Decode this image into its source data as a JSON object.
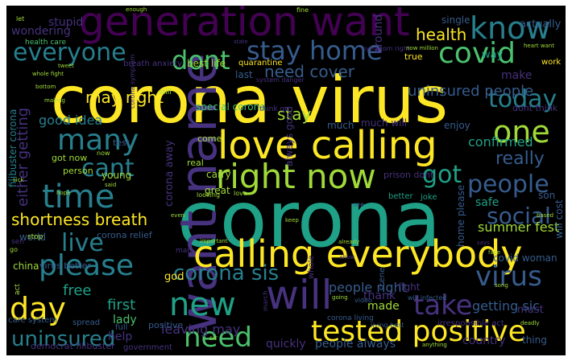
{
  "palette": {
    "yellow": "#fde725",
    "lime": "#a0da39",
    "green": "#4ac16d",
    "teal": "#1fa187",
    "blue": "#277f8e",
    "steel": "#365c8d",
    "indigo": "#46327e",
    "purple": "#440154"
  },
  "words": [
    {
      "text": "corona",
      "color": "teal"
    },
    {
      "text": "corona virus",
      "color": "yellow"
    },
    {
      "text": "generation want",
      "color": "purple"
    },
    {
      "text": "want name",
      "color": "indigo"
    },
    {
      "text": "calling everybody",
      "color": "yellow"
    },
    {
      "text": "love calling",
      "color": "yellow"
    },
    {
      "text": "right now",
      "color": "lime"
    },
    {
      "text": "will",
      "color": "indigo"
    },
    {
      "text": "tested positive",
      "color": "yellow"
    },
    {
      "text": "know",
      "color": "blue"
    },
    {
      "text": "covid",
      "color": "green"
    },
    {
      "text": "everyone",
      "color": "blue"
    },
    {
      "text": "stay home",
      "color": "steel"
    },
    {
      "text": "dont",
      "color": "green"
    },
    {
      "text": "time",
      "color": "blue"
    },
    {
      "text": "many",
      "color": "blue"
    },
    {
      "text": "one",
      "color": "lime"
    },
    {
      "text": "new",
      "color": "teal"
    },
    {
      "text": "day",
      "color": "yellow"
    },
    {
      "text": "please",
      "color": "blue"
    },
    {
      "text": "need",
      "color": "green"
    },
    {
      "text": "take",
      "color": "indigo"
    },
    {
      "text": "virus",
      "color": "steel"
    },
    {
      "text": "uninsured",
      "color": "blue"
    },
    {
      "text": "corona sis",
      "color": "blue"
    },
    {
      "text": "live",
      "color": "blue"
    },
    {
      "text": "cant",
      "color": "blue"
    },
    {
      "text": "today",
      "color": "blue"
    },
    {
      "text": "people",
      "color": "steel"
    },
    {
      "text": "social",
      "color": "steel"
    },
    {
      "text": "got",
      "color": "teal"
    },
    {
      "text": "shortness breath",
      "color": "yellow"
    },
    {
      "text": "health",
      "color": "yellow"
    },
    {
      "text": "uninsured people",
      "color": "steel"
    },
    {
      "text": "need cover",
      "color": "steel"
    },
    {
      "text": "may right",
      "color": "yellow"
    },
    {
      "text": "really",
      "color": "steel"
    },
    {
      "text": "stay",
      "color": "lime"
    },
    {
      "text": "good idea",
      "color": "blue"
    },
    {
      "text": "either getting",
      "color": "indigo"
    },
    {
      "text": "free",
      "color": "teal"
    },
    {
      "text": "first",
      "color": "teal"
    },
    {
      "text": "getting sic",
      "color": "steel"
    },
    {
      "text": "made",
      "color": "lime"
    },
    {
      "text": "people always",
      "color": "steel"
    },
    {
      "text": "country",
      "color": "indigo"
    },
    {
      "text": "confirmed",
      "color": "teal"
    },
    {
      "text": "safe",
      "color": "teal"
    },
    {
      "text": "summer fest",
      "color": "lime"
    },
    {
      "text": "people right",
      "color": "steel"
    },
    {
      "text": "leaving may",
      "color": "indigo"
    },
    {
      "text": "lady",
      "color": "green"
    },
    {
      "text": "help",
      "color": "indigo"
    },
    {
      "text": "quickly",
      "color": "indigo"
    },
    {
      "text": "around",
      "color": "indigo"
    },
    {
      "text": "actually",
      "color": "steel"
    },
    {
      "text": "single",
      "color": "steel"
    },
    {
      "text": "way",
      "color": "teal"
    },
    {
      "text": "make",
      "color": "indigo"
    },
    {
      "text": "stupid",
      "color": "indigo"
    },
    {
      "text": "wondering",
      "color": "indigo"
    },
    {
      "text": "best life",
      "color": "lime"
    },
    {
      "text": "last",
      "color": "steel"
    },
    {
      "text": "much will",
      "color": "indigo"
    },
    {
      "text": "much",
      "color": "steel"
    },
    {
      "text": "enjoy",
      "color": "steel"
    },
    {
      "text": "dont think",
      "color": "indigo"
    },
    {
      "text": "home please",
      "color": "steel"
    },
    {
      "text": "covid woman",
      "color": "steel"
    },
    {
      "text": "will cost",
      "color": "steel"
    },
    {
      "text": "son",
      "color": "steel"
    },
    {
      "text": "always good",
      "color": "indigo"
    },
    {
      "text": "special corona",
      "color": "green"
    },
    {
      "text": "corona away",
      "color": "indigo"
    },
    {
      "text": "world",
      "color": "steel"
    },
    {
      "text": "china",
      "color": "lime"
    },
    {
      "text": "corona relief",
      "color": "steel"
    },
    {
      "text": "virus better",
      "color": "steel"
    },
    {
      "text": "god",
      "color": "yellow"
    },
    {
      "text": "thank",
      "color": "indigo"
    },
    {
      "text": "fight",
      "color": "indigo"
    },
    {
      "text": "must",
      "color": "indigo"
    },
    {
      "text": "positive",
      "color": "steel"
    },
    {
      "text": "thing",
      "color": "steel"
    },
    {
      "text": "great",
      "color": "lime"
    },
    {
      "text": "carry",
      "color": "lime"
    },
    {
      "text": "prison dont",
      "color": "indigo"
    },
    {
      "text": "test",
      "color": "steel"
    },
    {
      "text": "young",
      "color": "lime"
    },
    {
      "text": "come",
      "color": "lime"
    },
    {
      "text": "real",
      "color": "lime"
    },
    {
      "text": "person",
      "color": "lime"
    },
    {
      "text": "got now",
      "color": "lime"
    },
    {
      "text": "filibuster corona",
      "color": "blue"
    },
    {
      "text": "democrat filibuster",
      "color": "indigo"
    },
    {
      "text": "government",
      "color": "indigo"
    },
    {
      "text": "care system",
      "color": "steel"
    },
    {
      "text": "full",
      "color": "steel"
    },
    {
      "text": "spread",
      "color": "steel"
    },
    {
      "text": "health care",
      "color": "green"
    },
    {
      "text": "breath anxiety",
      "color": "indigo"
    },
    {
      "text": "quarantine",
      "color": "yellow"
    },
    {
      "text": "true",
      "color": "yellow"
    },
    {
      "text": "work",
      "color": "yellow"
    },
    {
      "text": "symptom right",
      "color": "indigo"
    },
    {
      "text": "corona symptom",
      "color": "indigo"
    },
    {
      "text": "system danger",
      "color": "indigo"
    },
    {
      "text": "think go",
      "color": "indigo"
    },
    {
      "text": "corona living",
      "color": "steel"
    },
    {
      "text": "irresponsible act",
      "color": "indigo"
    },
    {
      "text": "living best",
      "color": "steel"
    },
    {
      "text": "will infected",
      "color": "steel"
    },
    {
      "text": "video",
      "color": "steel"
    },
    {
      "text": "scene",
      "color": "steel"
    },
    {
      "text": "better",
      "color": "teal"
    },
    {
      "text": "whole",
      "color": "indigo"
    },
    {
      "text": "joke",
      "color": "teal"
    },
    {
      "text": "see",
      "color": "steel"
    },
    {
      "text": "stop",
      "color": "lime"
    },
    {
      "text": "sen",
      "color": "indigo"
    },
    {
      "text": "let",
      "color": "lime"
    },
    {
      "text": "fine",
      "color": "lime"
    },
    {
      "text": "bottom",
      "color": "lime"
    },
    {
      "text": "making",
      "color": "lime"
    },
    {
      "text": "still",
      "color": "lime"
    },
    {
      "text": "state",
      "color": "indigo"
    },
    {
      "text": "even",
      "color": "lime"
    },
    {
      "text": "sir",
      "color": "lime"
    },
    {
      "text": "man",
      "color": "indigo"
    },
    {
      "text": "keep",
      "color": "lime"
    },
    {
      "text": "going",
      "color": "lime"
    },
    {
      "text": "already",
      "color": "lime"
    },
    {
      "text": "show",
      "color": "indigo"
    },
    {
      "text": "says",
      "color": "indigo"
    },
    {
      "text": "song",
      "color": "lime"
    },
    {
      "text": "based",
      "color": "lime"
    },
    {
      "text": "face",
      "color": "lime"
    },
    {
      "text": "deadly",
      "color": "lime"
    },
    {
      "text": "heart want",
      "color": "lime"
    },
    {
      "text": "now million",
      "color": "lime"
    },
    {
      "text": "whole fight",
      "color": "lime"
    },
    {
      "text": "sick",
      "color": "lime"
    },
    {
      "text": "hope",
      "color": "lime"
    },
    {
      "text": "said",
      "color": "lime"
    },
    {
      "text": "love",
      "color": "lime"
    },
    {
      "text": "looking",
      "color": "lime"
    },
    {
      "text": "important",
      "color": "lime"
    },
    {
      "text": "anything",
      "color": "lime"
    },
    {
      "text": "march",
      "color": "indigo"
    },
    {
      "text": "enough",
      "color": "lime"
    },
    {
      "text": "tweet",
      "color": "lime"
    },
    {
      "text": "now",
      "color": "lime"
    },
    {
      "text": "act",
      "color": "lime"
    },
    {
      "text": "go",
      "color": "lime"
    }
  ]
}
